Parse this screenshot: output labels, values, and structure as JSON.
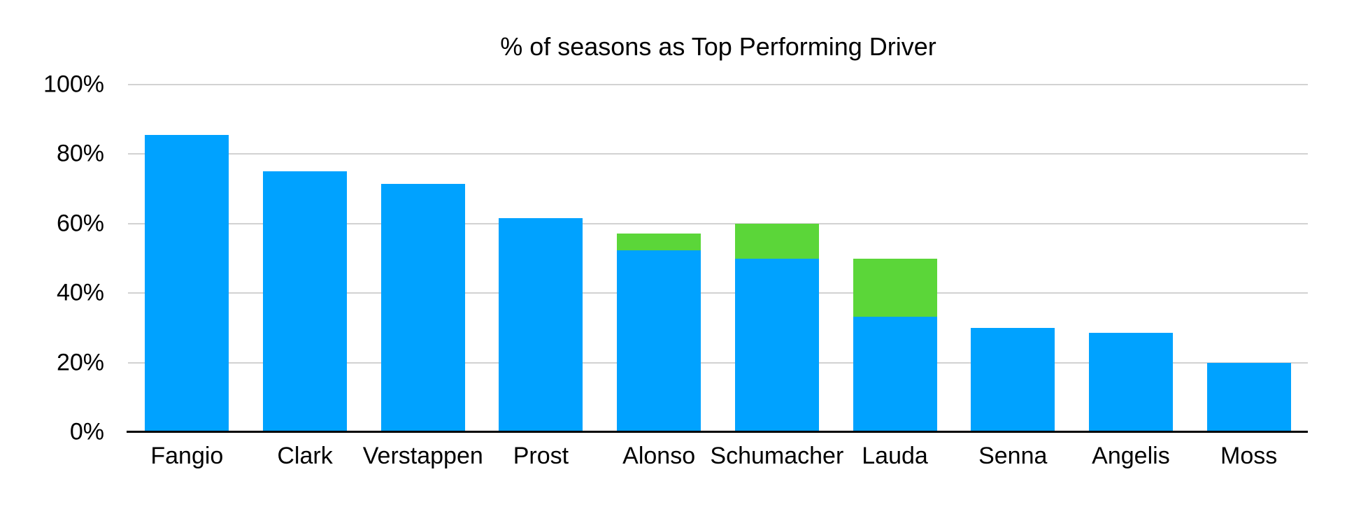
{
  "chart_data": {
    "type": "bar",
    "stacked": true,
    "title": "% of seasons as Top Performing Driver",
    "categories": [
      "Fangio",
      "Clark",
      "Verstappen",
      "Prost",
      "Alonso",
      "Schumacher",
      "Lauda",
      "Senna",
      "Angelis",
      "Moss"
    ],
    "series": [
      {
        "name": "blue",
        "color": "#00A2FF",
        "values": [
          85.5,
          75,
          71.4,
          61.5,
          52.4,
          50,
          33.3,
          30,
          28.6,
          20
        ]
      },
      {
        "name": "green",
        "color": "#5BD639",
        "values": [
          0,
          0,
          0,
          0,
          4.8,
          10,
          16.7,
          0,
          0,
          0
        ]
      }
    ],
    "y_ticks": [
      {
        "value": 0,
        "label": "0%"
      },
      {
        "value": 20,
        "label": "20%"
      },
      {
        "value": 40,
        "label": "40%"
      },
      {
        "value": 60,
        "label": "60%"
      },
      {
        "value": 80,
        "label": "80%"
      },
      {
        "value": 100,
        "label": "100%"
      }
    ],
    "ylim": [
      0,
      100
    ],
    "grid": true,
    "legend_position": "none",
    "colors": {
      "background": "#FFFFFF",
      "gridline": "#D2D2D2",
      "axis": "#000000",
      "text": "#000000"
    }
  }
}
